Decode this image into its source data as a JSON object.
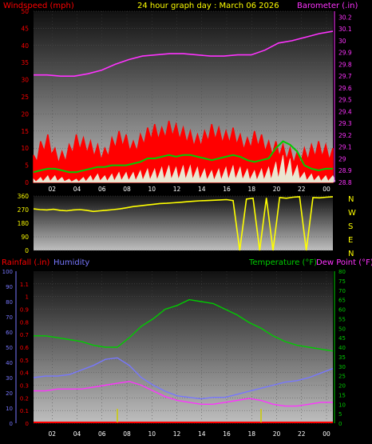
{
  "title": "24 hour graph day : March 06 2026",
  "colors": {
    "windspeed": "#ff0000",
    "gust": "#00cc00",
    "avgwind": "#e8ffe8",
    "barometer": "#ff33ff",
    "direction": "#ffff00",
    "rainfall": "#ff0000",
    "humidity": "#7777ff",
    "temperature": "#00cc00",
    "dewpoint": "#ff33ff"
  },
  "x_ticks": [
    "02",
    "04",
    "06",
    "08",
    "10",
    "12",
    "14",
    "16",
    "18",
    "20",
    "22",
    "00"
  ],
  "chart_data": [
    {
      "type": "line",
      "name": "wind-barometer",
      "left_axis": {
        "label": "Windspeed (mph)",
        "range": [
          0,
          50
        ],
        "ticks": [
          0,
          5,
          10,
          15,
          20,
          25,
          30,
          35,
          40,
          45,
          50
        ]
      },
      "right_axis": {
        "label": "Barometer (.in)",
        "range": [
          28.8,
          30.25
        ],
        "ticks": [
          "28.8",
          "28.9",
          "29",
          "29.1",
          "29.2",
          "29.3",
          "29.4",
          "29.5",
          "29.6",
          "29.7",
          "29.8",
          "29.9",
          "30",
          "30.1",
          "30.2"
        ]
      },
      "series": [
        {
          "key": "wind_max",
          "axis": "left",
          "values": [
            8,
            12,
            14,
            10,
            9,
            11,
            14,
            13,
            12,
            11,
            10,
            13,
            15,
            14,
            12,
            14,
            16,
            17,
            16,
            18,
            17,
            16,
            15,
            14,
            15,
            17,
            16,
            15,
            16,
            14,
            13,
            15,
            14,
            12,
            12,
            11,
            10,
            9,
            10,
            11,
            12,
            11,
            10
          ]
        },
        {
          "key": "wind_gust",
          "axis": "left",
          "values": [
            3,
            3.5,
            4,
            4,
            3.5,
            3,
            3,
            3.5,
            4,
            4.5,
            4.5,
            5,
            5,
            5,
            5.5,
            6,
            7,
            7,
            7.5,
            8,
            7.5,
            8,
            8,
            7.5,
            7,
            6.5,
            7,
            7.5,
            8,
            7.5,
            6.5,
            6,
            6.5,
            7,
            10,
            12,
            11,
            9,
            5,
            4,
            3.5,
            4,
            4
          ]
        },
        {
          "key": "wind_avg",
          "axis": "left",
          "values": [
            1,
            1.5,
            2,
            2,
            1.5,
            1,
            1,
            1.5,
            2,
            2.5,
            2,
            2.5,
            3,
            3,
            3,
            3.5,
            4,
            4,
            4.5,
            5,
            4.5,
            5,
            5,
            4.5,
            4,
            3.5,
            4,
            4.5,
            5,
            4.5,
            4,
            3.5,
            4,
            4.5,
            6,
            8,
            7,
            5,
            3,
            2.5,
            2,
            2,
            2
          ]
        },
        {
          "key": "barometer",
          "axis": "right",
          "values": [
            29.71,
            29.71,
            29.7,
            29.7,
            29.72,
            29.75,
            29.8,
            29.84,
            29.87,
            29.88,
            29.89,
            29.89,
            29.88,
            29.87,
            29.87,
            29.88,
            29.88,
            29.92,
            29.98,
            30.0,
            30.03,
            30.06,
            30.08
          ]
        }
      ]
    },
    {
      "type": "scatter",
      "name": "wind-direction",
      "left_axis": {
        "range": [
          0,
          360
        ],
        "ticks": [
          0,
          90,
          180,
          270,
          360
        ]
      },
      "right_labels": [
        "N",
        "W",
        "S",
        "E",
        "N"
      ],
      "values": [
        275,
        270,
        268,
        272,
        265,
        262,
        268,
        270,
        265,
        258,
        262,
        266,
        270,
        275,
        282,
        290,
        295,
        300,
        305,
        310,
        312,
        315,
        318,
        322,
        325,
        328,
        330,
        332,
        334,
        336,
        330,
        0,
        340,
        345,
        0,
        348,
        0,
        350,
        345,
        352,
        355,
        0,
        350,
        348,
        352,
        355
      ]
    },
    {
      "type": "line",
      "name": "rain-humidity-temperature",
      "left_axis": {
        "label": "Rainfall (.in)",
        "range": [
          0,
          1.2
        ],
        "ticks": [
          "0",
          "0.1",
          "0.2",
          "0.3",
          "0.4",
          "0.5",
          "0.6",
          "0.7",
          "0.8",
          "0.9",
          "1",
          "1.1"
        ]
      },
      "humidity_axis": {
        "label": "Humidity",
        "range": [
          0,
          100
        ],
        "ticks": [
          0,
          10,
          20,
          30,
          40,
          50,
          60,
          70,
          80,
          90,
          100
        ]
      },
      "right_axis": {
        "label": "Temperature (°F)",
        "label2": "Dew Point (°F)",
        "range": [
          0,
          80
        ],
        "ticks": [
          0,
          5,
          10,
          15,
          20,
          25,
          30,
          35,
          40,
          45,
          50,
          55,
          60,
          65,
          70,
          75,
          80
        ]
      },
      "series": [
        {
          "key": "temperature",
          "axis": "right",
          "values": [
            46,
            46,
            45,
            44,
            43,
            41,
            40,
            40,
            45,
            51,
            55,
            60,
            62,
            65,
            64,
            63,
            60,
            57,
            53,
            50,
            46,
            43,
            41,
            40,
            39,
            38
          ]
        },
        {
          "key": "dewpoint",
          "axis": "right",
          "values": [
            17,
            17,
            18,
            18,
            18,
            19,
            20,
            21,
            22,
            20,
            17,
            14,
            12,
            11,
            10,
            10,
            11,
            12,
            13,
            12,
            10,
            9,
            9,
            10,
            11,
            11
          ]
        },
        {
          "key": "humidity",
          "axis": "humidity",
          "values": [
            30,
            31,
            31,
            32,
            35,
            38,
            42,
            43,
            38,
            30,
            25,
            21,
            18,
            17,
            16,
            17,
            17,
            19,
            21,
            23,
            25,
            27,
            28,
            30,
            33,
            36
          ]
        },
        {
          "key": "rain",
          "axis": "left",
          "values": [
            0,
            0,
            0,
            0,
            0,
            0,
            0,
            0.05,
            0,
            0,
            0,
            0,
            0,
            0,
            0,
            0,
            0,
            0,
            0,
            0.05,
            0,
            0,
            0,
            0,
            0,
            0
          ]
        }
      ]
    }
  ]
}
